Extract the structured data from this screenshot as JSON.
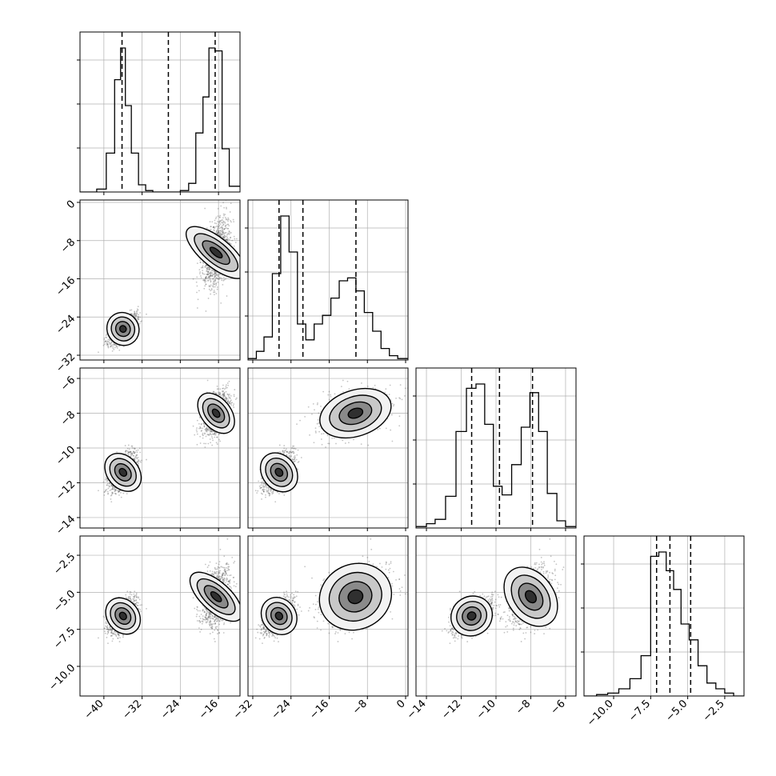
{
  "chart_data": {
    "type": "corner",
    "description_kind": "corner plot of a 4-parameter posterior: 1D marginal histograms on the diagonal, 2D density contours below",
    "grid": true,
    "params": [
      {
        "range": [
          -45,
          -11.5
        ],
        "ticks": [
          -40,
          -32,
          -24,
          -16
        ],
        "tick_labels": [
          "−40",
          "−32",
          "−24",
          "−16"
        ],
        "quantiles": [
          -36.2,
          -26.5,
          -16.7
        ],
        "hist_bins": [
          {
            "x": -42.5,
            "n": 0.0
          },
          {
            "x": -40.5,
            "n": 0.02
          },
          {
            "x": -38.5,
            "n": 0.27
          },
          {
            "x": -37.0,
            "n": 0.78
          },
          {
            "x": -36.0,
            "n": 1.0
          },
          {
            "x": -35.0,
            "n": 0.6
          },
          {
            "x": -33.5,
            "n": 0.27
          },
          {
            "x": -32.0,
            "n": 0.05
          },
          {
            "x": -30.5,
            "n": 0.01
          },
          {
            "x": -29.0,
            "n": 0.0
          },
          {
            "x": -27.0,
            "n": 0.0
          },
          {
            "x": -25.0,
            "n": 0.0
          },
          {
            "x": -23.0,
            "n": 0.01
          },
          {
            "x": -21.5,
            "n": 0.06
          },
          {
            "x": -20.0,
            "n": 0.41
          },
          {
            "x": -18.5,
            "n": 0.66
          },
          {
            "x": -17.5,
            "n": 1.0
          },
          {
            "x": -16.0,
            "n": 0.98
          },
          {
            "x": -14.5,
            "n": 0.3
          },
          {
            "x": -13.0,
            "n": 0.04
          }
        ]
      },
      {
        "range": [
          -33,
          0.5
        ],
        "ticks": [
          -32,
          -24,
          -16,
          -8,
          0
        ],
        "tick_labels": [
          "−32",
          "−24",
          "−16",
          "−8",
          "0"
        ],
        "quantiles": [
          -26.5,
          -21.5,
          -10.4
        ],
        "hist_bins": [
          {
            "x": -32.0,
            "n": 0.01
          },
          {
            "x": -30.5,
            "n": 0.06
          },
          {
            "x": -28.8,
            "n": 0.16
          },
          {
            "x": -27.0,
            "n": 0.6
          },
          {
            "x": -25.3,
            "n": 1.0
          },
          {
            "x": -23.5,
            "n": 0.75
          },
          {
            "x": -21.8,
            "n": 0.25
          },
          {
            "x": -20.0,
            "n": 0.14
          },
          {
            "x": -18.3,
            "n": 0.25
          },
          {
            "x": -16.5,
            "n": 0.31
          },
          {
            "x": -14.8,
            "n": 0.43
          },
          {
            "x": -13.0,
            "n": 0.55
          },
          {
            "x": -11.3,
            "n": 0.57
          },
          {
            "x": -9.5,
            "n": 0.48
          },
          {
            "x": -7.8,
            "n": 0.33
          },
          {
            "x": -6.0,
            "n": 0.2
          },
          {
            "x": -4.3,
            "n": 0.08
          },
          {
            "x": -2.5,
            "n": 0.03
          },
          {
            "x": -0.8,
            "n": 0.01
          }
        ]
      },
      {
        "range": [
          -14.6,
          -5.4
        ],
        "ticks": [
          -14,
          -12,
          -10,
          -8,
          -6
        ],
        "tick_labels": [
          "−14",
          "−12",
          "−10",
          "−8",
          "−6"
        ],
        "quantiles": [
          -11.4,
          -9.8,
          -7.9
        ],
        "hist_bins": [
          {
            "x": -14.2,
            "n": 0.01
          },
          {
            "x": -13.8,
            "n": 0.03
          },
          {
            "x": -13.2,
            "n": 0.06
          },
          {
            "x": -12.6,
            "n": 0.22
          },
          {
            "x": -12.0,
            "n": 0.67
          },
          {
            "x": -11.4,
            "n": 0.97
          },
          {
            "x": -10.9,
            "n": 1.0
          },
          {
            "x": -10.4,
            "n": 0.72
          },
          {
            "x": -9.9,
            "n": 0.29
          },
          {
            "x": -9.4,
            "n": 0.23
          },
          {
            "x": -8.8,
            "n": 0.44
          },
          {
            "x": -8.3,
            "n": 0.7
          },
          {
            "x": -7.8,
            "n": 0.94
          },
          {
            "x": -7.3,
            "n": 0.67
          },
          {
            "x": -6.8,
            "n": 0.24
          },
          {
            "x": -6.2,
            "n": 0.05
          },
          {
            "x": -5.8,
            "n": 0.01
          }
        ]
      },
      {
        "range": [
          -12,
          -1.2
        ],
        "ticks": [
          -10.0,
          -7.5,
          -5.0,
          -2.5
        ],
        "tick_labels": [
          "−10.0",
          "−7.5",
          "−5.0",
          "−2.5"
        ],
        "quantiles": [
          -7.1,
          -6.2,
          -4.8
        ],
        "hist_bins": [
          {
            "x": -11.5,
            "n": 0.0
          },
          {
            "x": -10.8,
            "n": 0.01
          },
          {
            "x": -10.0,
            "n": 0.02
          },
          {
            "x": -9.3,
            "n": 0.05
          },
          {
            "x": -8.5,
            "n": 0.12
          },
          {
            "x": -7.8,
            "n": 0.28
          },
          {
            "x": -7.2,
            "n": 0.97
          },
          {
            "x": -6.7,
            "n": 1.0
          },
          {
            "x": -6.2,
            "n": 0.87
          },
          {
            "x": -5.7,
            "n": 0.74
          },
          {
            "x": -5.2,
            "n": 0.5
          },
          {
            "x": -4.6,
            "n": 0.39
          },
          {
            "x": -4.0,
            "n": 0.21
          },
          {
            "x": -3.4,
            "n": 0.09
          },
          {
            "x": -2.8,
            "n": 0.05
          },
          {
            "x": -2.2,
            "n": 0.02
          },
          {
            "x": -1.6,
            "n": 0.0
          }
        ]
      }
    ],
    "modes": [
      {
        "weight": 0.5,
        "mean": [
          -36,
          -26.5,
          -11.4,
          -6.6
        ],
        "sd": [
          1.5,
          1.6,
          0.55,
          0.6
        ]
      },
      {
        "weight": 0.5,
        "mean": [
          -16.5,
          -10.5,
          -8.0,
          -5.3
        ],
        "sd": [
          1.4,
          3.5,
          0.6,
          1.0
        ]
      }
    ],
    "colors": {
      "contour": "#000000",
      "samples": "#555555",
      "quantile": "#000000",
      "grid": "#b0b0b0"
    }
  }
}
